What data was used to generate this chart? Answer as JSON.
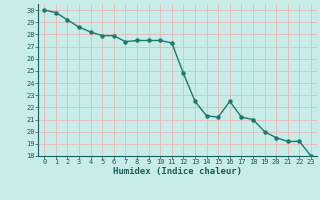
{
  "x": [
    0,
    1,
    2,
    3,
    4,
    5,
    6,
    7,
    8,
    9,
    10,
    11,
    12,
    13,
    14,
    15,
    16,
    17,
    18,
    19,
    20,
    21,
    22,
    23
  ],
  "y": [
    30.0,
    29.8,
    29.2,
    28.6,
    28.2,
    27.9,
    27.9,
    27.4,
    27.5,
    27.5,
    27.5,
    27.3,
    24.8,
    22.5,
    21.3,
    21.2,
    22.5,
    21.2,
    21.0,
    20.0,
    19.5,
    19.2,
    19.2,
    18.0
  ],
  "line_color": "#1a7a6e",
  "marker_color": "#1a7a6e",
  "bg_color": "#c8ece8",
  "grid_color": "#e8b8b8",
  "tick_label_color": "#1a5c5c",
  "xlabel": "Humidex (Indice chaleur)",
  "xlabel_color": "#1a5c5c",
  "xlim": [
    -0.5,
    23.5
  ],
  "ylim": [
    18,
    30.5
  ],
  "yticks": [
    18,
    19,
    20,
    21,
    22,
    23,
    24,
    25,
    26,
    27,
    28,
    29,
    30
  ],
  "xticks": [
    0,
    1,
    2,
    3,
    4,
    5,
    6,
    7,
    8,
    9,
    10,
    11,
    12,
    13,
    14,
    15,
    16,
    17,
    18,
    19,
    20,
    21,
    22,
    23
  ],
  "figsize": [
    3.2,
    2.0
  ],
  "dpi": 100
}
